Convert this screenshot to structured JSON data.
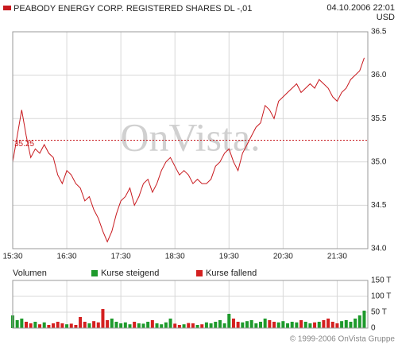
{
  "chart_data": [
    {
      "type": "line",
      "date": "04.10.2006 22:01",
      "currency": "USD",
      "watermark": "OnVista.",
      "reference_line": 35.25,
      "x": [
        930,
        935,
        940,
        945,
        950,
        955,
        960,
        965,
        970,
        975,
        980,
        985,
        990,
        995,
        1000,
        1005,
        1010,
        1015,
        1020,
        1025,
        1030,
        1035,
        1040,
        1045,
        1050,
        1055,
        1060,
        1065,
        1070,
        1075,
        1080,
        1085,
        1090,
        1095,
        1100,
        1105,
        1110,
        1115,
        1120,
        1125,
        1130,
        1135,
        1140,
        1145,
        1150,
        1155,
        1160,
        1165,
        1170,
        1175,
        1180,
        1185,
        1190,
        1195,
        1200,
        1205,
        1210,
        1215,
        1220,
        1225,
        1230,
        1235,
        1240,
        1245,
        1250,
        1255,
        1260,
        1265,
        1270,
        1275,
        1280,
        1285,
        1290,
        1295,
        1300,
        1305,
        1310,
        1315,
        1320
      ],
      "series": [
        {
          "name": "PEABODY ENERGY CORP. REGISTERED SHARES DL -,01",
          "color": "#c8191e",
          "values": [
            35.0,
            35.3,
            35.6,
            35.3,
            35.05,
            35.15,
            35.1,
            35.2,
            35.1,
            35.05,
            34.85,
            34.75,
            34.9,
            34.85,
            34.75,
            34.7,
            34.55,
            34.6,
            34.45,
            34.35,
            34.2,
            34.08,
            34.2,
            34.4,
            34.55,
            34.6,
            34.7,
            34.5,
            34.6,
            34.75,
            34.8,
            34.65,
            34.75,
            34.9,
            35.0,
            35.05,
            34.95,
            34.85,
            34.9,
            34.85,
            34.75,
            34.8,
            34.75,
            34.75,
            34.8,
            34.95,
            35.0,
            35.1,
            35.15,
            35.0,
            34.9,
            35.1,
            35.2,
            35.3,
            35.4,
            35.45,
            35.65,
            35.6,
            35.5,
            35.7,
            35.75,
            35.8,
            35.85,
            35.9,
            35.8,
            35.85,
            35.9,
            35.85,
            35.95,
            35.9,
            35.85,
            35.75,
            35.7,
            35.8,
            35.85,
            35.95,
            36.0,
            36.05,
            36.2
          ]
        }
      ],
      "xlim": [
        930,
        1324
      ],
      "xticks": [
        {
          "value": 930,
          "label": "15:30"
        },
        {
          "value": 990,
          "label": "16:30"
        },
        {
          "value": 1050,
          "label": "17:30"
        },
        {
          "value": 1110,
          "label": "18:30"
        },
        {
          "value": 1170,
          "label": "19:30"
        },
        {
          "value": 1230,
          "label": "20:30"
        },
        {
          "value": 1290,
          "label": "21:30"
        }
      ],
      "ylim": [
        34.0,
        36.5
      ],
      "yticks": [
        {
          "value": 34.0,
          "label": "34.0"
        },
        34.5,
        {
          "value": 35.0,
          "label": "35.0"
        },
        35.5,
        {
          "value": 36.0,
          "label": "36.0"
        },
        36.5
      ],
      "grid": true
    },
    {
      "type": "bar",
      "title": "Volumen",
      "x": [
        930,
        935,
        940,
        945,
        950,
        955,
        960,
        965,
        970,
        975,
        980,
        985,
        990,
        995,
        1000,
        1005,
        1010,
        1015,
        1020,
        1025,
        1030,
        1035,
        1040,
        1045,
        1050,
        1055,
        1060,
        1065,
        1070,
        1075,
        1080,
        1085,
        1090,
        1095,
        1100,
        1105,
        1110,
        1115,
        1120,
        1125,
        1130,
        1135,
        1140,
        1145,
        1150,
        1155,
        1160,
        1165,
        1170,
        1175,
        1180,
        1185,
        1190,
        1195,
        1200,
        1205,
        1210,
        1215,
        1220,
        1225,
        1230,
        1235,
        1240,
        1245,
        1250,
        1255,
        1260,
        1265,
        1270,
        1275,
        1280,
        1285,
        1290,
        1295,
        1300,
        1305,
        1310,
        1315,
        1320
      ],
      "series": [
        {
          "name": "Kurse steigend",
          "color": "#1e9a2c",
          "values": [
            40,
            25,
            30,
            null,
            null,
            20,
            null,
            18,
            null,
            null,
            null,
            null,
            12,
            null,
            null,
            null,
            null,
            15,
            null,
            null,
            null,
            null,
            30,
            20,
            15,
            18,
            12,
            null,
            15,
            14,
            20,
            null,
            15,
            12,
            18,
            30,
            null,
            null,
            12,
            null,
            null,
            10,
            null,
            18,
            15,
            20,
            25,
            15,
            45,
            null,
            null,
            18,
            22,
            25,
            15,
            20,
            30,
            null,
            null,
            18,
            22,
            15,
            20,
            18,
            null,
            20,
            15,
            null,
            20,
            null,
            null,
            null,
            null,
            22,
            25,
            20,
            30,
            40,
            55
          ]
        },
        {
          "name": "Kurse fallend",
          "color": "#d42020",
          "values": [
            null,
            null,
            null,
            20,
            15,
            null,
            12,
            null,
            10,
            15,
            20,
            15,
            null,
            14,
            10,
            35,
            20,
            null,
            22,
            18,
            60,
            25,
            null,
            null,
            null,
            null,
            null,
            20,
            null,
            null,
            null,
            25,
            null,
            null,
            null,
            null,
            14,
            10,
            null,
            16,
            15,
            null,
            12,
            null,
            null,
            null,
            null,
            null,
            null,
            30,
            20,
            null,
            null,
            null,
            null,
            null,
            null,
            25,
            20,
            null,
            null,
            null,
            null,
            null,
            25,
            null,
            null,
            18,
            null,
            25,
            30,
            20,
            15,
            null,
            null,
            null,
            null,
            null,
            null
          ]
        }
      ],
      "xlim": [
        930,
        1324
      ],
      "ylim": [
        0,
        150
      ],
      "yticks": [
        0,
        {
          "value": 50,
          "label": "50 T"
        },
        {
          "value": 100,
          "label": "100 T"
        },
        {
          "value": 150,
          "label": "150 T"
        }
      ],
      "grid": true
    }
  ],
  "footer": "© 1999-2006 OnVista Gruppe"
}
